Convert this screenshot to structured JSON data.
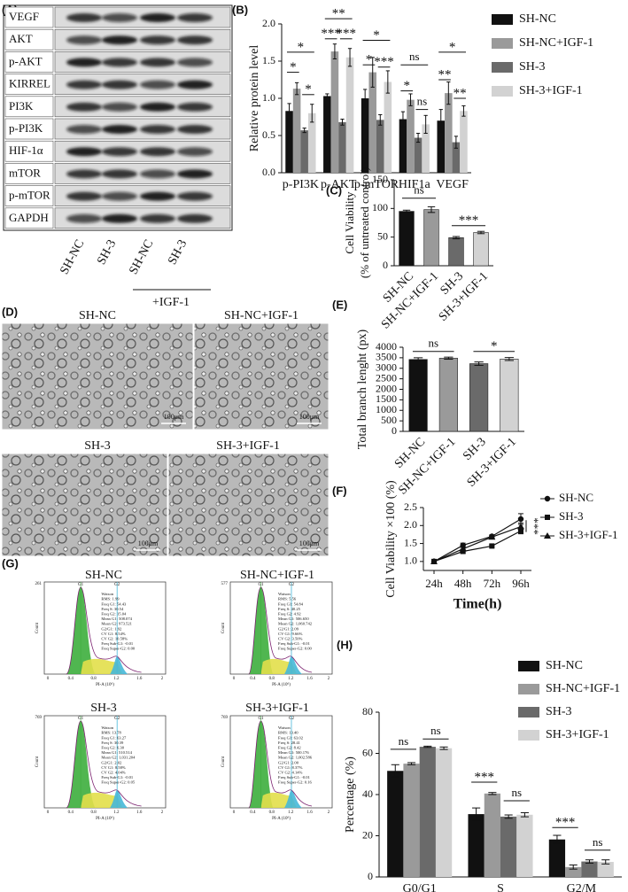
{
  "figure_labels": [
    "(A)",
    "(B)",
    "(C)",
    "(D)",
    "(E)",
    "(F)",
    "(G)",
    "(H)"
  ],
  "blot": {
    "proteins": [
      "VEGF",
      "AKT",
      "p-AKT",
      "KIRREL",
      "PI3K",
      "p-PI3K",
      "HIF-1α",
      "mTOR",
      "p-mTOR",
      "GAPDH"
    ],
    "lanes": [
      "SH-NC",
      "SH-3",
      "SH-NC",
      "SH-3"
    ],
    "treatment": "+IGF-1"
  },
  "micrographs": {
    "titles": [
      "SH-NC",
      "SH-NC+IGF-1",
      "SH-3",
      "SH-3+IGF-1"
    ],
    "scale_bar": "100μm"
  },
  "flow_cytometry": {
    "x_label": "PI-A (10⁶)",
    "y_label": "Count",
    "peaks": [
      "G1",
      "G2"
    ],
    "x_ticks": [
      "0",
      "0.4",
      "0.8",
      "1.2",
      "1.6",
      "2"
    ],
    "panels": [
      {
        "title": "SH-NC",
        "y_max": "261",
        "stats": [
          "Watson",
          "RMS: 1.99",
          "Freq G1: 54.43",
          "Freq S: 30.54",
          "Freq G2: 15.04",
          "Mean G1: 508.074",
          "Mean G2: 973.521",
          "G2/G1: 1.92",
          "CV G1: 8.54%",
          "CV G2: 10.58%",
          "Freq Sub-G1: -0.01",
          "Freq Super-G2: 0.00"
        ]
      },
      {
        "title": "SH-NC+IGF-1",
        "y_max": "577",
        "stats": [
          "Watson",
          "RMS: 5.56",
          "Freq G1: 54.84",
          "Freq S: 40.25",
          "Freq G2: 4.92",
          "Mean G1: 506.650",
          "Mean G2: 1,060.742",
          "G2/G1: 2.09",
          "CV G1: 9.66%",
          "CV G2: 3.50%",
          "Freq Sub-G1: -0.01",
          "Freq Super-G2: 0.00"
        ]
      },
      {
        "title": "SH-3",
        "y_max": "769",
        "stats": [
          "Watson",
          "RMS: 13.78",
          "Freq G1: 63.27",
          "Freq S: 30.39",
          "Freq G2: 6.30",
          "Mean G1: 510.514",
          "Mean G2: 1,031.204",
          "G2/G1: 2.02",
          "CV G1: 8.58%",
          "CV G2: 4.04%",
          "Freq Sub-G1: -0.01",
          "Freq Super-G2: 0.05"
        ]
      },
      {
        "title": "SH-3+IGF-1",
        "y_max": "769",
        "stats": [
          "Watson",
          "RMS: 13.40",
          "Freq G1: 63.02",
          "Freq S: 28.41",
          "Freq G2: 8.42",
          "Mean G1: 500.176",
          "Mean G2: 1,002.586",
          "G2/G1: 2.00",
          "CV G1: 8.37%",
          "CV G2: 4.14%",
          "Freq Sub-G1: -0.01",
          "Freq Super-G2: 0.16"
        ]
      }
    ]
  },
  "chart_data": [
    {
      "type": "bar",
      "y_label": "Relative protein level",
      "categories": [
        "p-PI3K",
        "p-AKT",
        "p-mTOR",
        "HIF1a",
        "VEGF"
      ],
      "ylim": [
        0,
        2
      ],
      "yticks": [
        {
          "value": 0,
          "label": "0.0"
        },
        0.5,
        {
          "value": 1,
          "label": "1.0"
        },
        1.5,
        {
          "value": 2,
          "label": "2.0"
        }
      ],
      "grid": false,
      "legend": "right",
      "series": [
        {
          "name": "SH-NC",
          "color": "#111111",
          "values": [
            0.83,
            1.03,
            1.0,
            0.72,
            0.7
          ],
          "errors": [
            0.1,
            0.03,
            0.12,
            0.1,
            0.15
          ]
        },
        {
          "name": "SH-NC+IGF-1",
          "color": "#9a9a9a",
          "values": [
            1.13,
            1.63,
            1.35,
            0.98,
            1.07
          ],
          "errors": [
            0.08,
            0.1,
            0.2,
            0.08,
            0.15
          ]
        },
        {
          "name": "SH-3",
          "color": "#6a6a6a",
          "values": [
            0.57,
            0.68,
            0.71,
            0.47,
            0.41
          ],
          "errors": [
            0.03,
            0.04,
            0.07,
            0.06,
            0.08
          ]
        },
        {
          "name": "SH-3+IGF-1",
          "color": "#d2d2d2",
          "values": [
            0.8,
            1.55,
            1.22,
            0.65,
            0.83
          ],
          "errors": [
            0.12,
            0.12,
            0.15,
            0.12,
            0.07
          ]
        }
      ],
      "annotations": [
        "*",
        "*",
        "*",
        "***",
        "**",
        "***",
        "*",
        "*",
        "***",
        "*",
        "ns",
        "ns",
        "**",
        "*",
        "**"
      ]
    },
    {
      "type": "bar",
      "y_label": [
        "Cell Viability",
        "(% of untreated control)"
      ],
      "categories": [
        "SH-NC",
        "SH-NC+IGF-1",
        "SH-3",
        "SH-3+IGF-1"
      ],
      "values": [
        95,
        98,
        49,
        58
      ],
      "errors": [
        2,
        5,
        2,
        2
      ],
      "colors": [
        "#111111",
        "#9a9a9a",
        "#6a6a6a",
        "#d2d2d2"
      ],
      "ylim": [
        0,
        150
      ],
      "yticks": [
        0,
        50,
        100,
        150
      ],
      "grid": false,
      "annotations": [
        "ns",
        "***"
      ]
    },
    {
      "type": "bar",
      "y_label": "Total branch lenght (px)",
      "categories": [
        "SH-NC",
        "SH-NC+IGF-1",
        "SH-3",
        "SH-3+IGF-1"
      ],
      "values": [
        3420,
        3480,
        3220,
        3440
      ],
      "errors": [
        80,
        50,
        80,
        70
      ],
      "colors": [
        "#111111",
        "#9a9a9a",
        "#6a6a6a",
        "#d2d2d2"
      ],
      "ylim": [
        0,
        4000
      ],
      "yticks": [
        0,
        500,
        1000,
        1500,
        2000,
        2500,
        3000,
        3500,
        4000
      ],
      "grid": false,
      "annotations": [
        "ns",
        "*"
      ]
    },
    {
      "type": "line",
      "y_label": "Cell Viability ×100 (%)",
      "x_label": "Time(h)",
      "categories": [
        "24h",
        "48h",
        "72h",
        "96h"
      ],
      "ylim": [
        0.75,
        2.5
      ],
      "yticks": [
        {
          "value": 1,
          "label": "1.0"
        },
        1.5,
        {
          "value": 2,
          "label": "2.0"
        },
        2.5
      ],
      "grid": false,
      "legend": "right",
      "series": [
        {
          "name": "SH-NC",
          "color": "#111111",
          "marker": "circle",
          "values": [
            1.0,
            1.45,
            1.7,
            2.18
          ],
          "errors": [
            0.03,
            0.06,
            0.04,
            0.15
          ]
        },
        {
          "name": "SH-3",
          "color": "#111111",
          "marker": "square",
          "values": [
            1.0,
            1.28,
            1.43,
            1.85
          ],
          "errors": [
            0.02,
            0.04,
            0.03,
            0.08
          ]
        },
        {
          "name": "SH-3+IGF-1",
          "color": "#111111",
          "marker": "triangle",
          "values": [
            1.0,
            1.35,
            1.68,
            1.97
          ],
          "errors": [
            0.02,
            0.05,
            0.03,
            0.1
          ]
        }
      ],
      "annotations": [
        "***"
      ]
    },
    {
      "type": "bar",
      "y_label": "Percentage (%)",
      "categories": [
        "G0/G1",
        "S",
        "G2/M"
      ],
      "ylim": [
        0,
        80
      ],
      "yticks": [
        0,
        20,
        40,
        60,
        80
      ],
      "grid": false,
      "legend": "top-right",
      "series": [
        {
          "name": "SH-NC",
          "color": "#111111",
          "values": [
            51.5,
            30.5,
            18.2
          ],
          "errors": [
            3,
            3,
            2
          ]
        },
        {
          "name": "SH-NC+IGF-1",
          "color": "#9a9a9a",
          "values": [
            55,
            40.5,
            4.8
          ],
          "errors": [
            0.5,
            0.5,
            1
          ]
        },
        {
          "name": "SH-3",
          "color": "#6a6a6a",
          "values": [
            63.2,
            29.3,
            7.5
          ],
          "errors": [
            0.3,
            0.8,
            0.8
          ]
        },
        {
          "name": "SH-3+IGF-1",
          "color": "#d2d2d2",
          "values": [
            62.5,
            30.2,
            7.3
          ],
          "errors": [
            0.6,
            1,
            1
          ]
        }
      ],
      "annotations": [
        "ns",
        "ns",
        "***",
        "ns",
        "***",
        "ns"
      ]
    }
  ]
}
